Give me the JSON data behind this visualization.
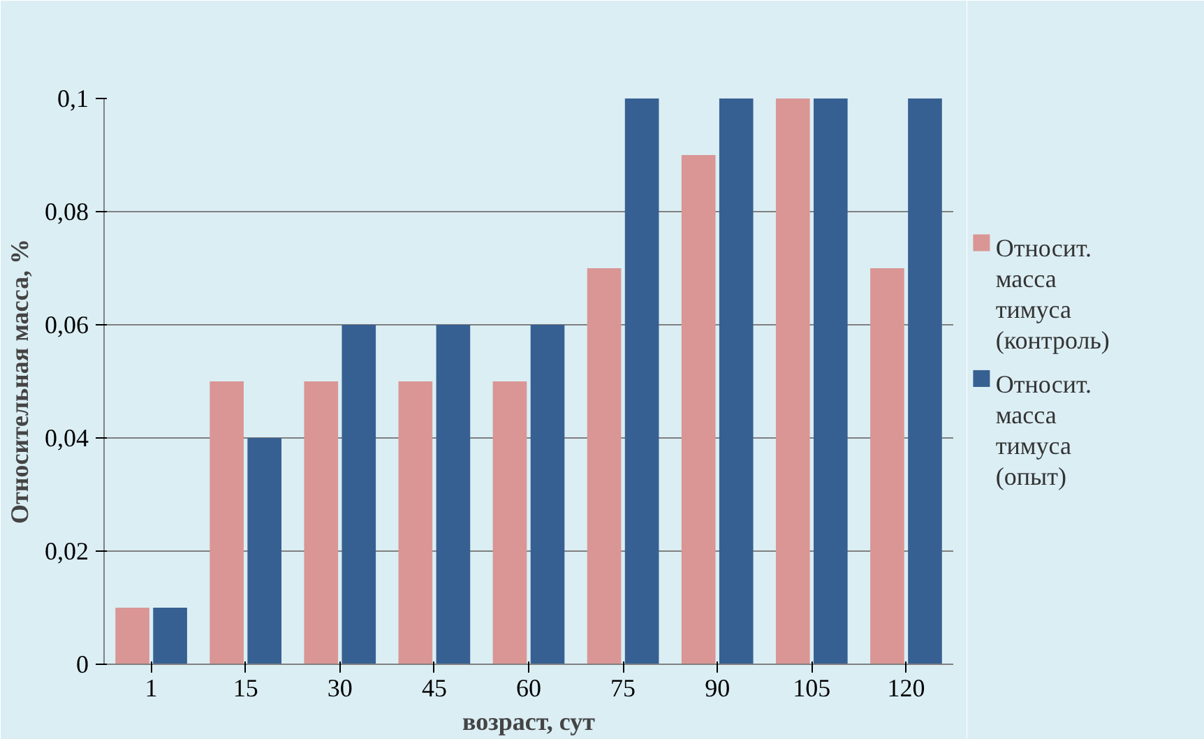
{
  "chart_data": {
    "type": "bar",
    "xlabel": "возраст, сут",
    "ylabel": "Относительная масса, %",
    "categories": [
      "1",
      "15",
      "30",
      "45",
      "60",
      "75",
      "90",
      "105",
      "120"
    ],
    "series": [
      {
        "name": "Относит. масса тимуса (контроль)",
        "color": "#d99694",
        "values": [
          0.01,
          0.05,
          0.05,
          0.05,
          0.05,
          0.07,
          0.09,
          0.1,
          0.07
        ]
      },
      {
        "name": "Относит. масса тимуса (опыт)",
        "color": "#376092",
        "values": [
          0.01,
          0.04,
          0.06,
          0.06,
          0.06,
          0.1,
          0.1,
          0.1,
          0.1
        ]
      }
    ],
    "ylim": [
      0,
      0.1
    ],
    "yticks": [
      0,
      {
        "value": 0.02,
        "label": "0,02"
      },
      {
        "value": 0.04,
        "label": "0,04"
      },
      {
        "value": 0.06,
        "label": "0,06"
      },
      {
        "value": 0.08,
        "label": "0,08"
      },
      {
        "value": 0.1,
        "label": "0,1"
      }
    ],
    "grid": "y",
    "legend": "right"
  }
}
